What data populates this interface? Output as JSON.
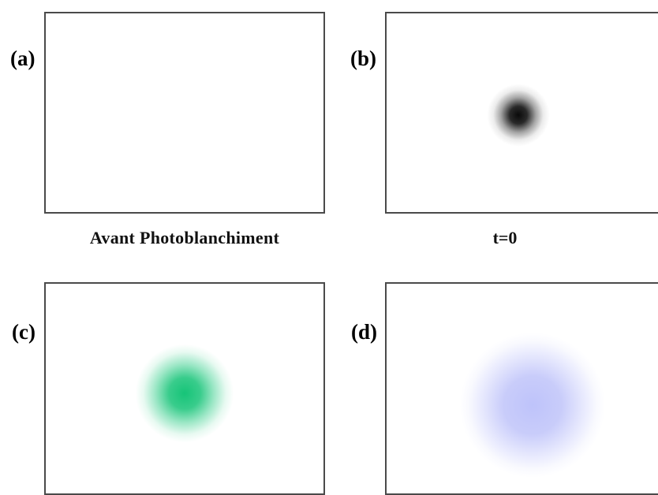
{
  "panels": {
    "a": {
      "label": "(a)",
      "caption": "Avant Photoblanchiment",
      "spot_color": ""
    },
    "b": {
      "label": "(b)",
      "caption": "t=0",
      "spot_color": "#0a0a0a"
    },
    "c": {
      "label": "(c)",
      "caption": "",
      "spot_color": "#16c478"
    },
    "d": {
      "label": "(d)",
      "caption": "",
      "spot_color": "#bec3fa"
    }
  },
  "colors": {
    "frame": "#4a4a4a",
    "background": "#ffffff",
    "text": "#000000"
  }
}
